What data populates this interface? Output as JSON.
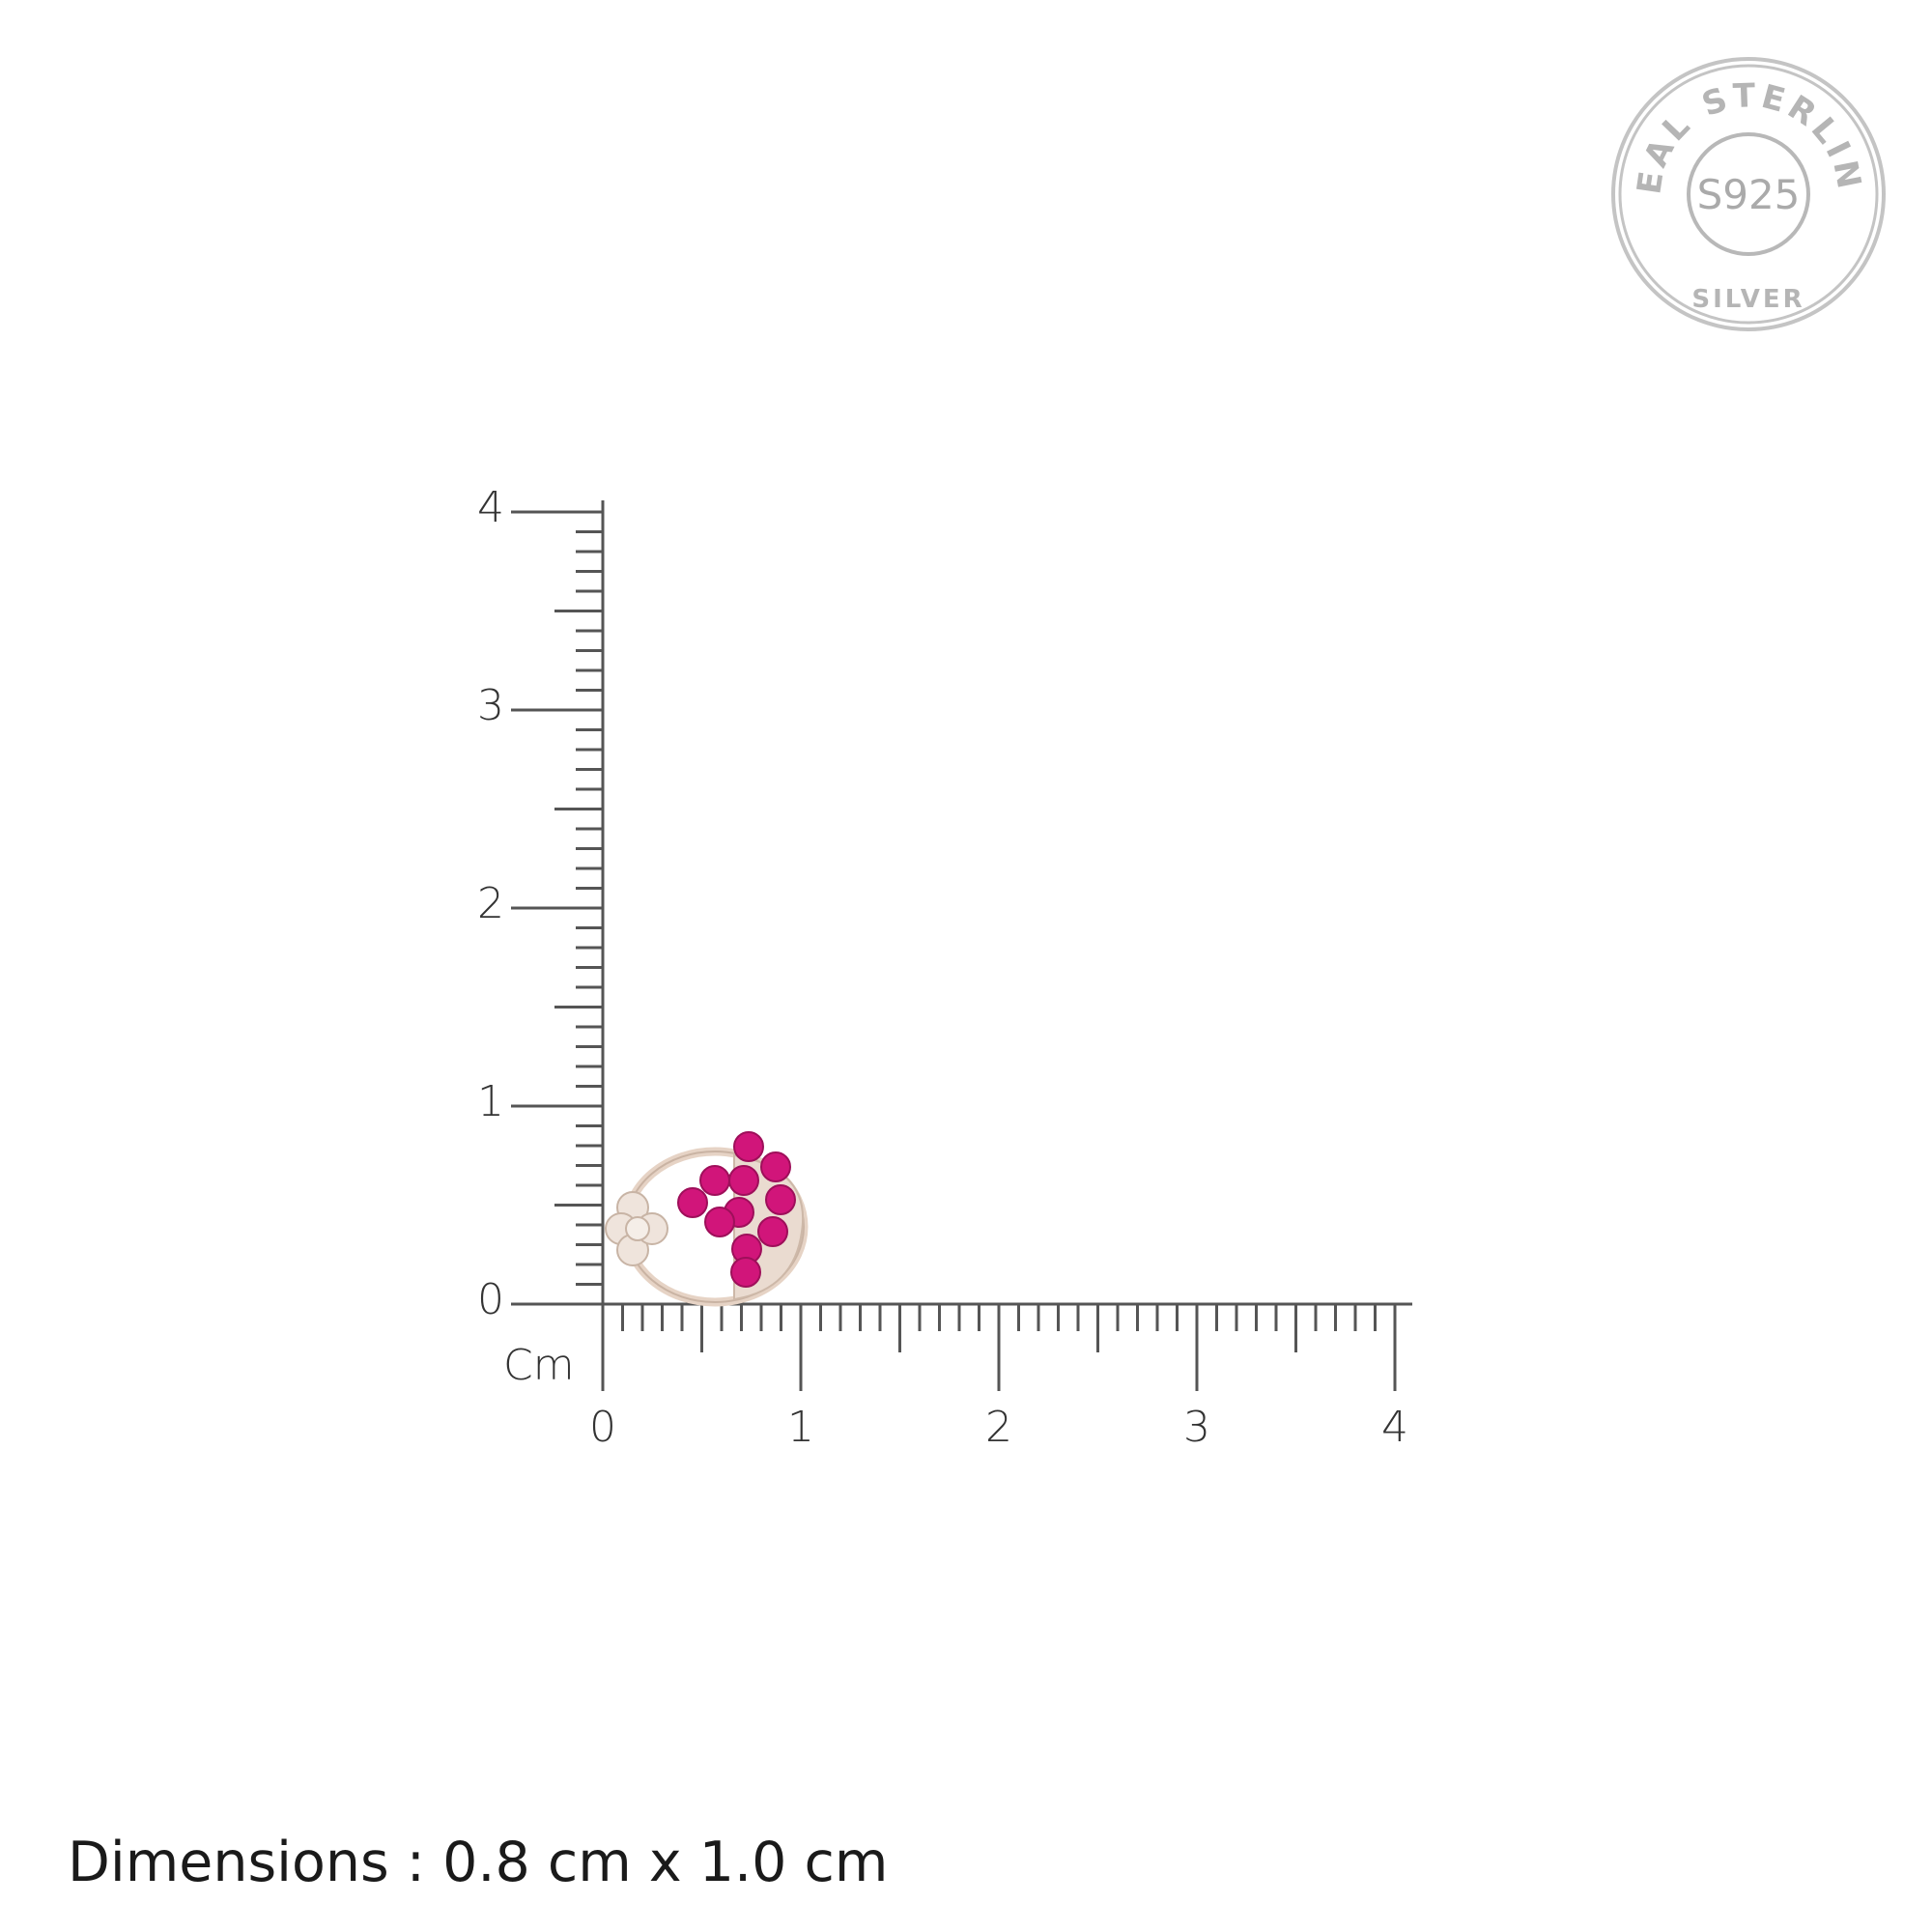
{
  "ruler": {
    "unit_label": "Cm",
    "x_ticks": [
      "0",
      "1",
      "2",
      "3",
      "4"
    ],
    "y_ticks": [
      "0",
      "1",
      "2",
      "3",
      "4"
    ],
    "range_cm": [
      0,
      4
    ],
    "minor_division_cm": 0.1
  },
  "product": {
    "type": "stud earring",
    "stone_color": "#d1157a",
    "metal_color": "#e7d8cc"
  },
  "caption": "Dimensions : 0.8 cm x 1.0 cm",
  "stamp": {
    "outer_text": "REAL STERLING",
    "center_text": "S925",
    "bottom_text": "SILVER",
    "color": "#b8b8b8"
  }
}
